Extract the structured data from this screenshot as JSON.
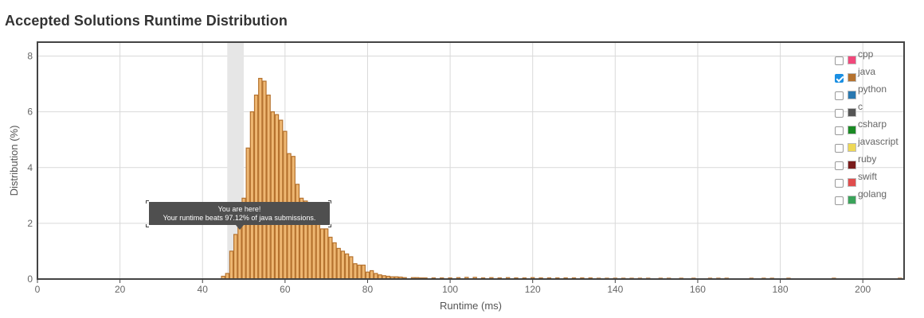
{
  "page": {
    "title": "Accepted Solutions Runtime Distribution"
  },
  "tooltip": {
    "line1": "You are here!",
    "line2": "Your runtime beats 97.12% of java submissions."
  },
  "legend": [
    {
      "label": "cpp",
      "color": "#f1487b",
      "checked": false
    },
    {
      "label": "java",
      "color": "#b5722e",
      "checked": true
    },
    {
      "label": "python",
      "color": "#2a78b0",
      "checked": false
    },
    {
      "label": "c",
      "color": "#555555",
      "checked": false
    },
    {
      "label": "csharp",
      "color": "#1a8a24",
      "checked": false
    },
    {
      "label": "javascript",
      "color": "#eed857",
      "checked": false
    },
    {
      "label": "ruby",
      "color": "#7a1c1c",
      "checked": false
    },
    {
      "label": "swift",
      "color": "#e04d4d",
      "checked": false
    },
    {
      "label": "golang",
      "color": "#3aa35a",
      "checked": false
    }
  ],
  "chart_data": {
    "type": "bar",
    "title": "Accepted Solutions Runtime Distribution",
    "xlabel": "Runtime (ms)",
    "ylabel": "Distribution (%)",
    "xlim": [
      0,
      210
    ],
    "ylim": [
      0,
      8.5
    ],
    "xticks": [
      0,
      20,
      40,
      60,
      80,
      100,
      120,
      140,
      160,
      180,
      200
    ],
    "yticks": [
      0,
      2,
      4,
      6,
      8
    ],
    "grid": true,
    "legend_position": "top-right",
    "highlight_range": [
      46,
      50
    ],
    "bar_color": "#eeb772",
    "bar_stroke": "#b5722e",
    "series": [
      {
        "name": "java",
        "x": [
          45,
          46,
          47,
          48,
          49,
          50,
          51,
          52,
          53,
          54,
          55,
          56,
          57,
          58,
          59,
          60,
          61,
          62,
          63,
          64,
          65,
          66,
          67,
          68,
          69,
          70,
          71,
          72,
          73,
          74,
          75,
          76,
          77,
          78,
          79,
          80,
          81,
          82,
          83,
          84,
          85,
          86,
          87,
          88,
          89,
          91,
          92,
          93,
          94,
          96,
          98,
          100,
          102,
          104,
          106,
          108,
          110,
          112,
          114,
          116,
          118,
          120,
          122,
          124,
          126,
          128,
          130,
          132,
          134,
          136,
          138,
          140,
          142,
          144,
          146,
          148,
          151,
          153,
          156,
          159,
          163,
          165,
          167,
          173,
          176,
          178,
          182,
          193,
          209
        ],
        "values": [
          0.1,
          0.2,
          1.0,
          1.6,
          1.9,
          2.9,
          4.7,
          6.0,
          6.6,
          7.2,
          7.1,
          6.6,
          6.0,
          5.9,
          5.7,
          5.3,
          4.5,
          4.4,
          3.4,
          2.9,
          2.8,
          2.6,
          2.2,
          2.0,
          1.8,
          1.8,
          1.5,
          1.3,
          1.1,
          1.0,
          0.9,
          0.8,
          0.55,
          0.5,
          0.5,
          0.25,
          0.3,
          0.2,
          0.15,
          0.12,
          0.1,
          0.08,
          0.08,
          0.07,
          0.05,
          0.05,
          0.05,
          0.04,
          0.04,
          0.04,
          0.04,
          0.04,
          0.05,
          0.06,
          0.06,
          0.04,
          0.05,
          0.04,
          0.05,
          0.04,
          0.04,
          0.05,
          0.04,
          0.04,
          0.04,
          0.04,
          0.04,
          0.04,
          0.04,
          0.03,
          0.03,
          0.03,
          0.03,
          0.03,
          0.03,
          0.03,
          0.03,
          0.03,
          0.03,
          0.03,
          0.03,
          0.03,
          0.03,
          0.03,
          0.03,
          0.03,
          0.03,
          0.03,
          0.03
        ]
      }
    ]
  }
}
